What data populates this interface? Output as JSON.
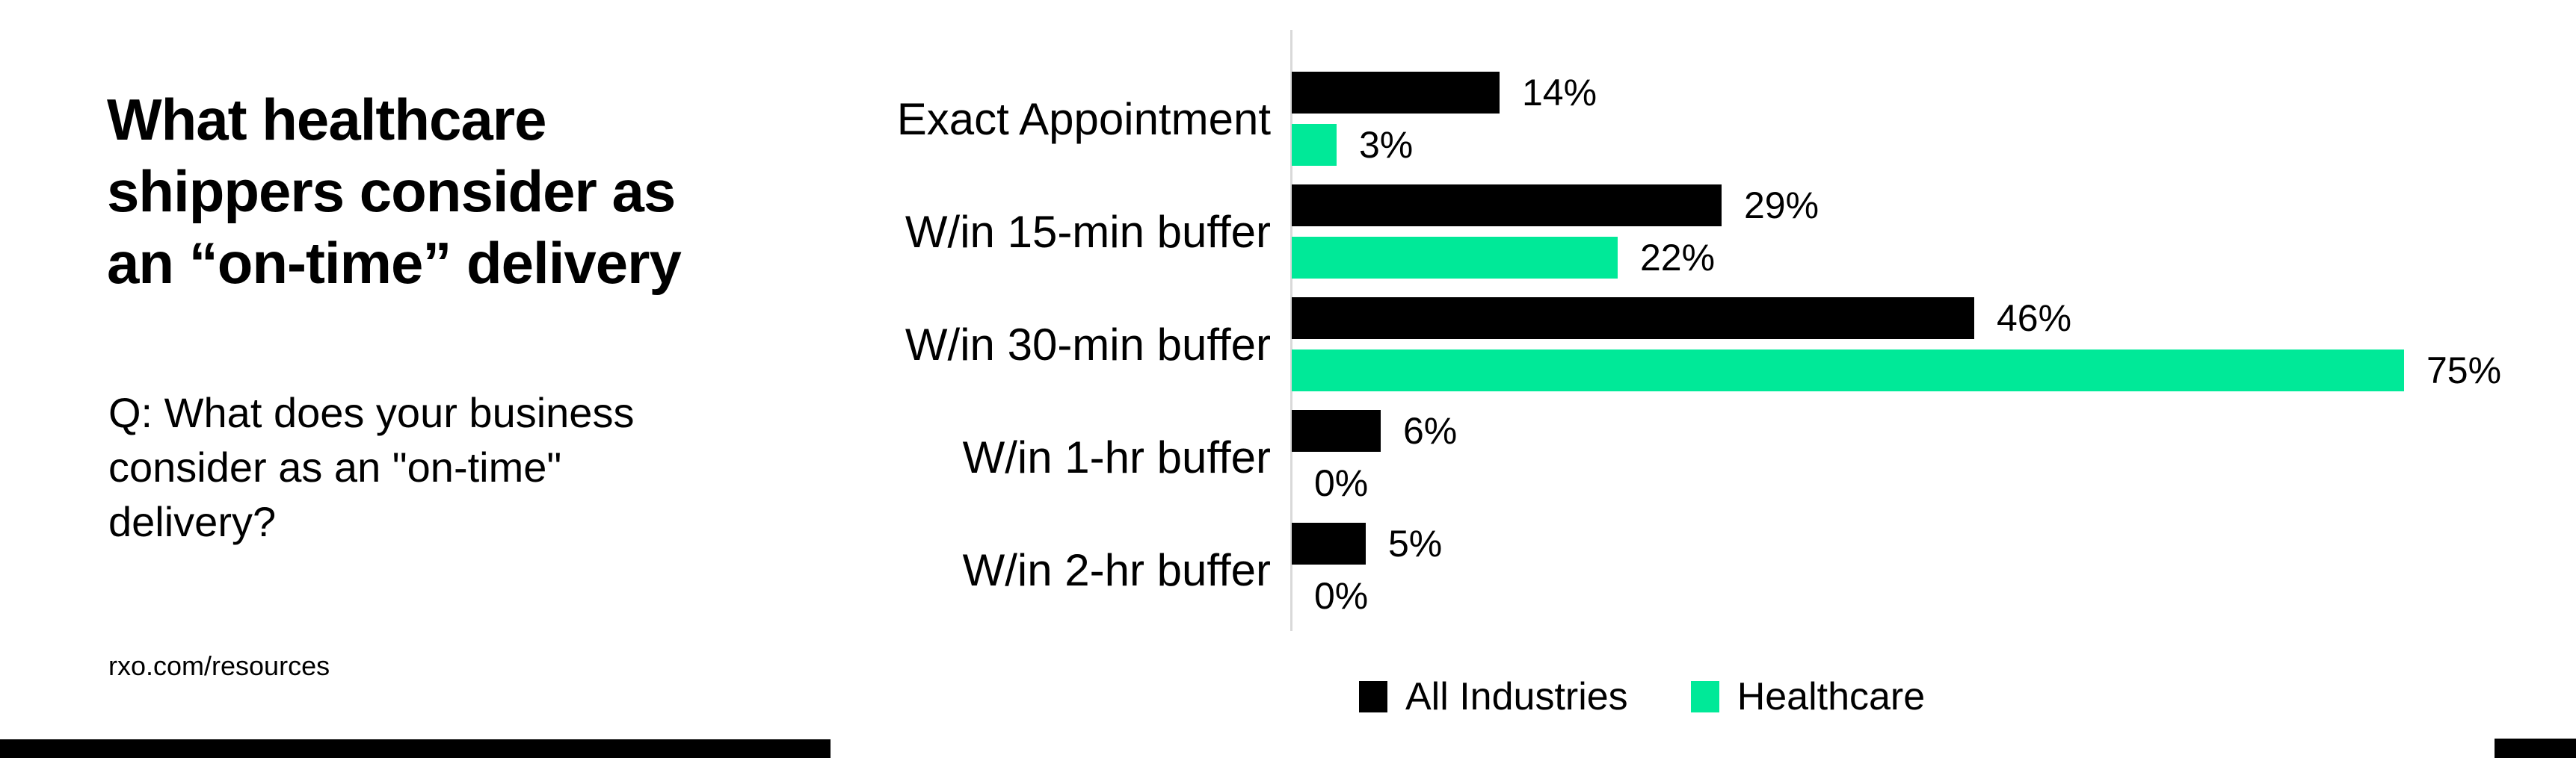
{
  "header": {
    "title_lines": [
      "What healthcare",
      "shippers consider as",
      "an “on-time” delivery"
    ],
    "subtitle_lines": [
      "Q: What does your business",
      "consider as an \"on-time\"",
      "delivery?"
    ],
    "footer": "rxo.com/resources"
  },
  "chart_data": {
    "type": "bar",
    "orientation": "horizontal",
    "title": "What healthcare shippers consider as an “on-time” delivery",
    "categories": [
      "Exact Appointment",
      "W/in 15-min buffer",
      "W/in 30-min buffer",
      "W/in 1-hr buffer",
      "W/in 2-hr buffer"
    ],
    "series": [
      {
        "name": "All Industries",
        "color": "#000000",
        "values": [
          14,
          29,
          46,
          6,
          5
        ]
      },
      {
        "name": "Healthcare",
        "color": "#00E998",
        "values": [
          3,
          22,
          75,
          0,
          0
        ]
      }
    ],
    "value_suffix": "%",
    "xlim": [
      0,
      75
    ],
    "grid": false,
    "axis_color": "#D9D9D9",
    "legend_position": "bottom"
  },
  "decor": {
    "accent_bar_color": "#000000"
  }
}
